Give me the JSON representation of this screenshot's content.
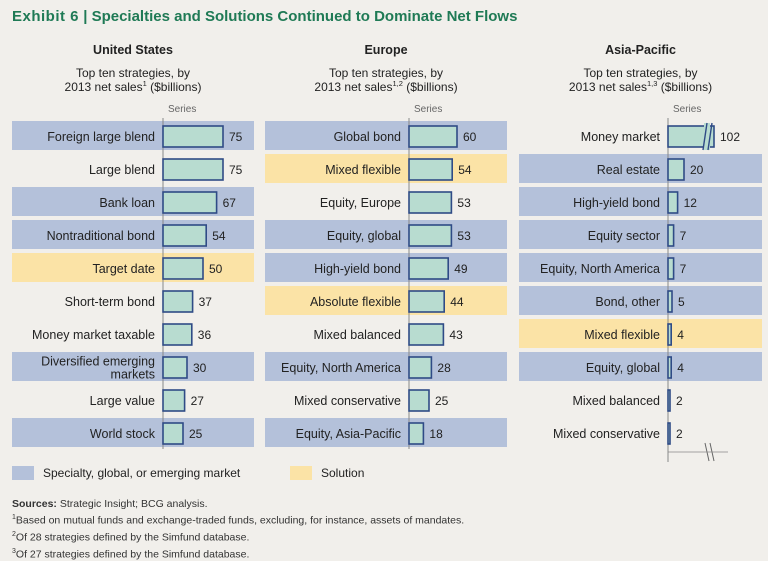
{
  "header": {
    "exhibit": "Exhibit 6",
    "separator": "|",
    "title": "Specialties and Solutions Continued to Dominate Net Flows"
  },
  "colors": {
    "specialty_band": "#b4c1da",
    "solution_band": "#fbe3a6",
    "bar_fill": "#b8dcd0",
    "bar_stroke": "#2f4b86",
    "title_green": "#1f7a55"
  },
  "chart_data": [
    {
      "type": "bar",
      "orientation": "horizontal",
      "title": "United States",
      "subtitle_line1": "Top ten strategies, by",
      "subtitle_line2": "2013 net sales",
      "subtitle_sup": "1",
      "subtitle_unit": "($billions)",
      "series_label": "Series",
      "xlim": [
        0,
        75
      ],
      "categories": [
        "Foreign large blend",
        "Large blend",
        "Bank loan",
        "Nontraditional bond",
        "Target date",
        "Short-term bond",
        "Money market taxable",
        "Diversified emerging markets",
        "Large value",
        "World stock"
      ],
      "values": [
        75,
        75,
        67,
        54,
        50,
        37,
        36,
        30,
        27,
        25
      ],
      "groups": [
        "specialty",
        "none",
        "specialty",
        "specialty",
        "solution",
        "none",
        "none",
        "specialty",
        "none",
        "specialty"
      ]
    },
    {
      "type": "bar",
      "orientation": "horizontal",
      "title": "Europe",
      "subtitle_line1": "Top ten strategies, by",
      "subtitle_line2": "2013 net sales",
      "subtitle_sup": "1,2",
      "subtitle_unit": "($billions)",
      "series_label": "Series",
      "xlim": [
        0,
        75
      ],
      "categories": [
        "Global bond",
        "Mixed flexible",
        "Equity, Europe",
        "Equity, global",
        "High-yield bond",
        "Absolute flexible",
        "Mixed balanced",
        "Equity, North America",
        "Mixed conservative",
        "Equity, Asia-Pacific"
      ],
      "values": [
        60,
        54,
        53,
        53,
        49,
        44,
        43,
        28,
        25,
        18
      ],
      "groups": [
        "specialty",
        "solution",
        "none",
        "specialty",
        "specialty",
        "solution",
        "none",
        "specialty",
        "none",
        "specialty"
      ]
    },
    {
      "type": "bar",
      "orientation": "horizontal",
      "title": "Asia-Pacific",
      "subtitle_line1": "Top ten strategies, by",
      "subtitle_line2": "2013 net sales",
      "subtitle_sup": "1,3",
      "subtitle_unit": "($billions)",
      "series_label": "Series",
      "xlim": [
        0,
        75
      ],
      "axis_break": true,
      "categories": [
        "Money market",
        "Real estate",
        "High-yield bond",
        "Equity sector",
        "Equity, North America",
        "Bond, other",
        "Mixed flexible",
        "Equity, global",
        "Mixed balanced",
        "Mixed conservative"
      ],
      "values": [
        102,
        20,
        12,
        7,
        7,
        5,
        4,
        4,
        2,
        2
      ],
      "groups": [
        "none",
        "specialty",
        "specialty",
        "specialty",
        "specialty",
        "specialty",
        "solution",
        "specialty",
        "none",
        "none"
      ]
    }
  ],
  "legend": {
    "specialty": "Specialty, global, or emerging market",
    "solution": "Solution"
  },
  "footnotes": {
    "sources_label": "Sources:",
    "sources_text": "Strategic Insight; BCG analysis.",
    "notes": [
      {
        "sup": "1",
        "text": "Based on mutual funds and exchange-traded funds, excluding, for instance, assets of mandates."
      },
      {
        "sup": "2",
        "text": "Of 28 strategies defined by the Simfund database."
      },
      {
        "sup": "3",
        "text": "Of 27 strategies defined by the Simfund database."
      }
    ]
  }
}
